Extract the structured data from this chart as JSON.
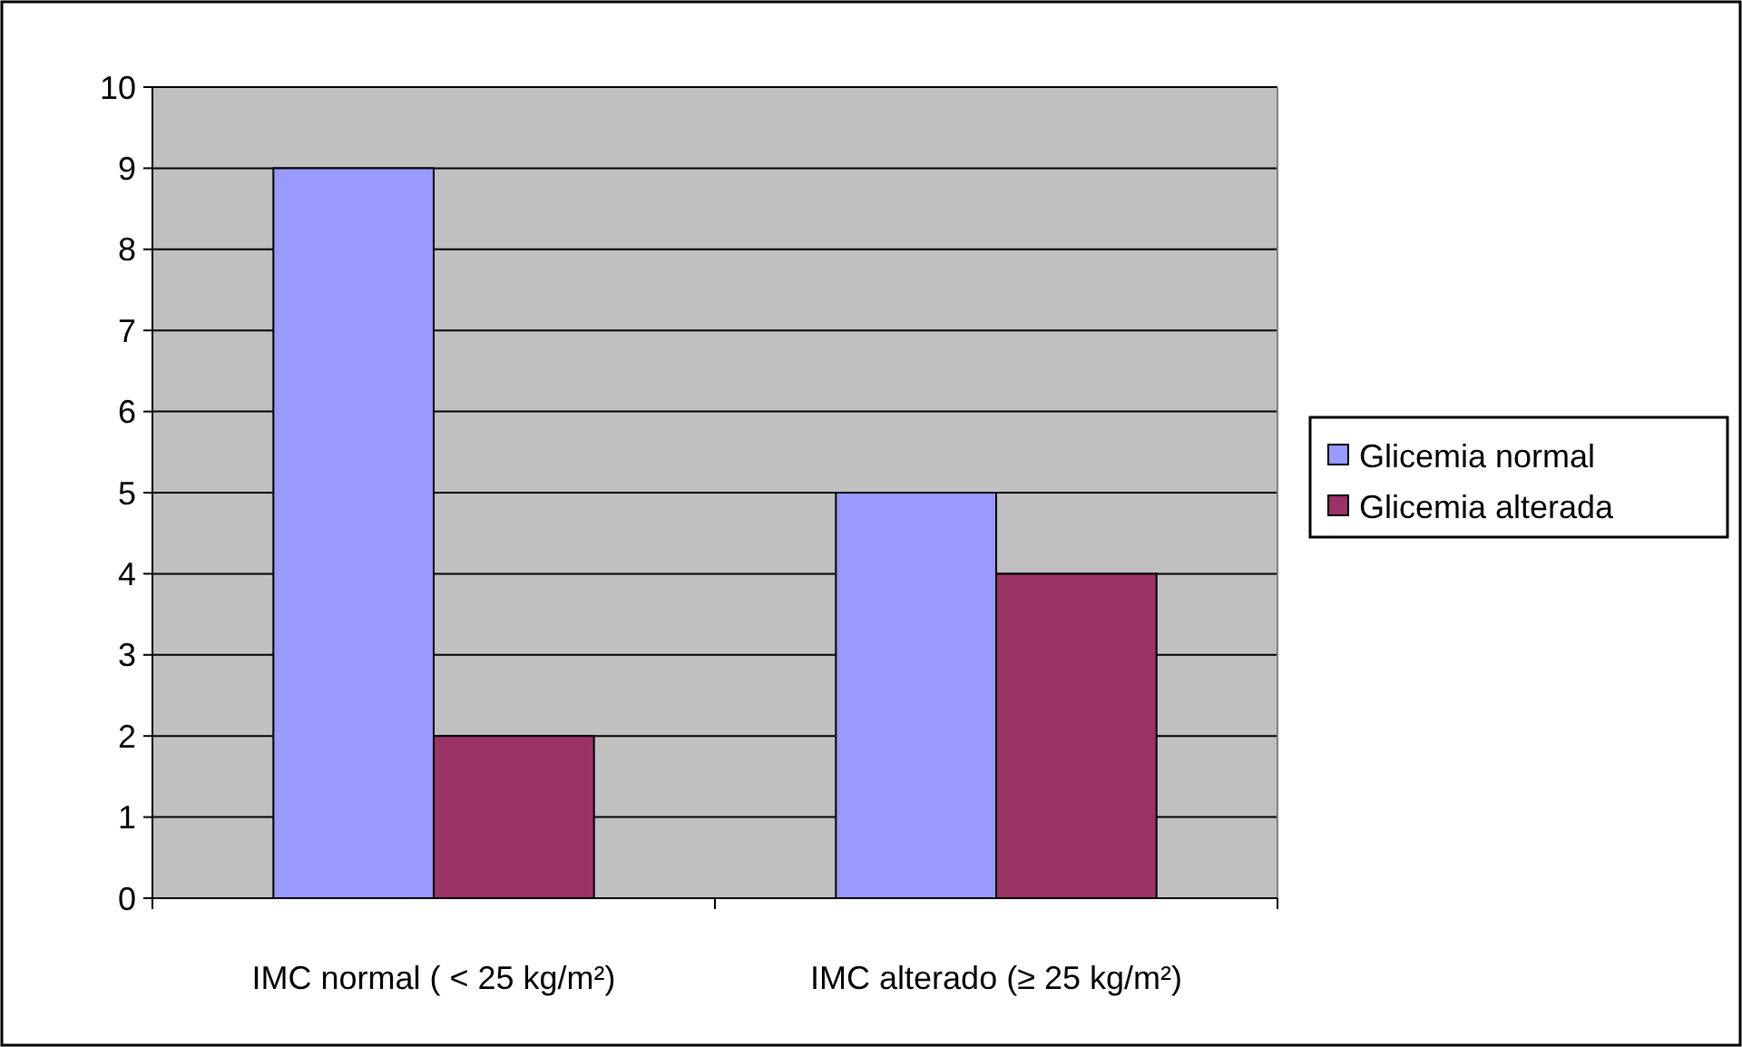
{
  "chart_data": {
    "type": "bar",
    "categories": [
      "IMC normal ( < 25 kg/m²)",
      "IMC alterado (≥ 25 kg/m²)"
    ],
    "series": [
      {
        "name": "Glicemia normal",
        "color": "#9999ff",
        "values": [
          9,
          5
        ]
      },
      {
        "name": "Glicemia alterada",
        "color": "#993366",
        "values": [
          2,
          4
        ]
      }
    ],
    "ylim": [
      0,
      10
    ],
    "yticks": [
      0,
      1,
      2,
      3,
      4,
      5,
      6,
      7,
      8,
      9,
      10
    ],
    "grid": "y",
    "legend": "right"
  }
}
